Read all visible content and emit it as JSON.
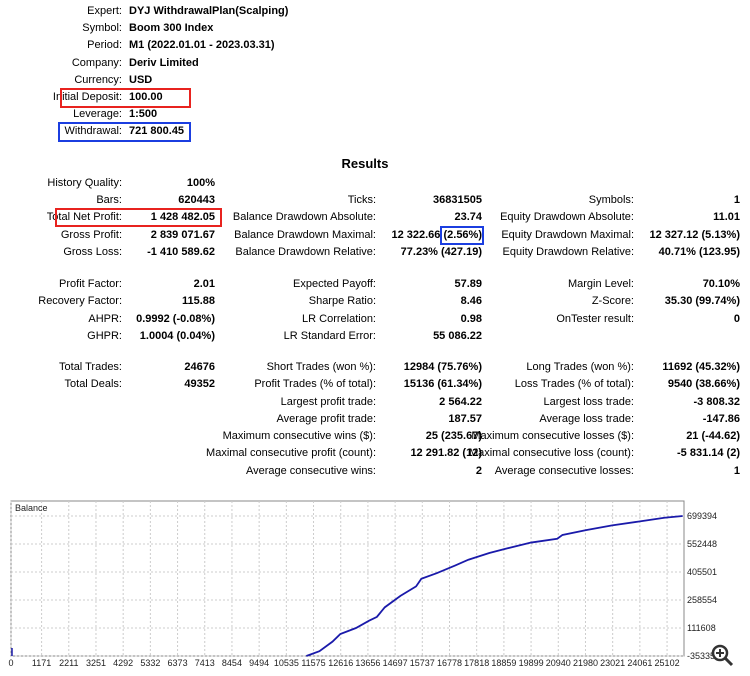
{
  "header": [
    {
      "label": "Expert:",
      "value": "DYJ WithdrawalPlan(Scalping)"
    },
    {
      "label": "Symbol:",
      "value": "Boom 300 Index"
    },
    {
      "label": "Period:",
      "value": "M1 (2022.01.01 - 2023.03.31)"
    },
    {
      "label": "Company:",
      "value": "Deriv Limited"
    },
    {
      "label": "Currency:",
      "value": "USD"
    },
    {
      "label": "Initial Deposit:",
      "value": "100.00"
    },
    {
      "label": "Leverage:",
      "value": "1:500"
    },
    {
      "label": "Withdrawal:",
      "value": "721 800.45"
    }
  ],
  "results_title": "Results",
  "results_rows": [
    [
      [
        "History Quality:",
        "100%"
      ],
      null,
      null
    ],
    [
      [
        "Bars:",
        "620443"
      ],
      [
        "Ticks:",
        "36831505"
      ],
      [
        "Symbols:",
        "1"
      ]
    ],
    [
      [
        "Total Net Profit:",
        "1 428 482.05"
      ],
      [
        "Balance Drawdown Absolute:",
        "23.74"
      ],
      [
        "Equity Drawdown Absolute:",
        "11.01"
      ]
    ],
    [
      [
        "Gross Profit:",
        "2 839 071.67"
      ],
      [
        "Balance Drawdown Maximal:",
        "12 322.66 (2.56%)"
      ],
      [
        "Equity Drawdown Maximal:",
        "12 327.12 (5.13%)"
      ]
    ],
    [
      [
        "Gross Loss:",
        "-1 410 589.62"
      ],
      [
        "Balance Drawdown Relative:",
        "77.23% (427.19)"
      ],
      [
        "Equity Drawdown Relative:",
        "40.71% (123.95)"
      ]
    ],
    [
      [
        "Profit Factor:",
        "2.01"
      ],
      [
        "Expected Payoff:",
        "57.89"
      ],
      [
        "Margin Level:",
        "70.10%"
      ]
    ],
    [
      [
        "Recovery Factor:",
        "115.88"
      ],
      [
        "Sharpe Ratio:",
        "8.46"
      ],
      [
        "Z-Score:",
        "35.30 (99.74%)"
      ]
    ],
    [
      [
        "AHPR:",
        "0.9992 (-0.08%)"
      ],
      [
        "LR Correlation:",
        "0.98"
      ],
      [
        "OnTester result:",
        "0"
      ]
    ],
    [
      [
        "GHPR:",
        "1.0004 (0.04%)"
      ],
      [
        "LR Standard Error:",
        "55 086.22"
      ],
      null
    ],
    [
      [
        "Total Trades:",
        "24676"
      ],
      [
        "Short Trades (won %):",
        "12984 (75.76%)"
      ],
      [
        "Long Trades (won %):",
        "11692 (45.32%)"
      ]
    ],
    [
      [
        "Total Deals:",
        "49352"
      ],
      [
        "Profit Trades (% of total):",
        "15136 (61.34%)"
      ],
      [
        "Loss Trades (% of total):",
        "9540 (38.66%)"
      ]
    ],
    [
      null,
      [
        "Largest profit trade:",
        "2 564.22"
      ],
      [
        "Largest loss trade:",
        "-3 808.32"
      ]
    ],
    [
      null,
      [
        "Average profit trade:",
        "187.57"
      ],
      [
        "Average loss trade:",
        "-147.86"
      ]
    ],
    [
      null,
      [
        "Maximum consecutive wins ($):",
        "25 (235.67)"
      ],
      [
        "Maximum consecutive losses ($):",
        "21 (-44.62)"
      ]
    ],
    [
      null,
      [
        "Maximal consecutive profit (count):",
        "12 291.82 (12)"
      ],
      [
        "Maximal consecutive loss (count):",
        "-5 831.14 (2)"
      ]
    ],
    [
      null,
      [
        "Average consecutive wins:",
        "2"
      ],
      [
        "Average consecutive losses:",
        "1"
      ]
    ]
  ],
  "colors": {
    "highlight_red": "#e8231f",
    "highlight_blue": "#1b3ee0",
    "balance_line": "#1a1aaa"
  },
  "chart_data": {
    "type": "line",
    "title": "Balance",
    "x_ticks": [
      0,
      1171,
      2211,
      3251,
      4292,
      5332,
      6373,
      7413,
      8454,
      9494,
      10535,
      11575,
      12616,
      13656,
      14697,
      15737,
      16778,
      17818,
      18859,
      19899,
      20940,
      21980,
      23021,
      24061,
      25102
    ],
    "y_ticks": [
      699394,
      552448,
      405501,
      258554,
      111608,
      -35335
    ],
    "xlim": [
      0,
      25750
    ],
    "ylim": [
      -35335,
      760000
    ],
    "grid": true,
    "series": [
      {
        "name": "Balance",
        "x": [
          11300,
          11800,
          12300,
          12600,
          13200,
          13700,
          14000,
          14300,
          14900,
          15500,
          15700,
          16300,
          17000,
          17500,
          18300,
          19000,
          19900,
          20900,
          21100,
          22000,
          23000,
          24000,
          25000,
          25700
        ],
        "y": [
          -35335,
          -10000,
          40000,
          80000,
          111608,
          150000,
          170000,
          220000,
          280000,
          330000,
          370000,
          400000,
          440000,
          470000,
          505000,
          530000,
          560000,
          580000,
          600000,
          625000,
          650000,
          670000,
          690000,
          699394
        ]
      }
    ]
  }
}
